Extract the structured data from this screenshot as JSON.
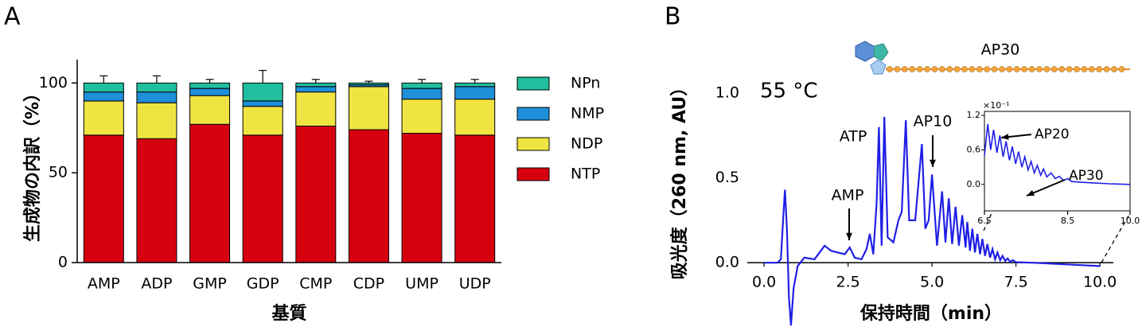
{
  "chart_data": [
    {
      "type": "stacked_bar",
      "panel": "A",
      "y_label": "生成物の内訳（%）",
      "x_label": "基質",
      "categories": [
        "AMP",
        "ADP",
        "GMP",
        "GDP",
        "CMP",
        "CDP",
        "UMP",
        "UDP"
      ],
      "series": [
        {
          "name": "NTP",
          "color": "#d7000f",
          "values": [
            71,
            69,
            77,
            71,
            76,
            74,
            72,
            71
          ],
          "errors": [
            3,
            2,
            1,
            3,
            1,
            1.5,
            0.5,
            1
          ]
        },
        {
          "name": "NDP",
          "color": "#f0e442",
          "values": [
            19,
            20,
            16,
            16,
            19,
            24,
            19,
            20
          ],
          "errors": [
            1,
            1,
            0.5,
            3,
            1,
            0.5,
            1,
            3
          ]
        },
        {
          "name": "NMP",
          "color": "#1e8fd8",
          "values": [
            5,
            6,
            4,
            3,
            3,
            1,
            6,
            7
          ],
          "errors": [
            1,
            1,
            1,
            1,
            1,
            0.5,
            1,
            1
          ]
        },
        {
          "name": "NPn",
          "color": "#1fbf9f",
          "values": [
            5,
            5,
            3,
            10,
            2,
            1,
            3,
            2
          ],
          "errors": [
            4,
            4,
            2,
            7,
            2,
            1,
            2,
            2
          ]
        }
      ],
      "ylim": [
        0,
        113
      ],
      "yticks": [
        0,
        50,
        100
      ]
    },
    {
      "type": "line",
      "panel": "B",
      "y_label": "吸光度（260 nm, AU）",
      "x_label": "保持時間（min）",
      "annotations": [
        "55 °C",
        "ATP",
        "AMP",
        "AP10",
        "AP30"
      ],
      "x": [
        0.0,
        0.4,
        0.5,
        0.58,
        0.62,
        0.68,
        0.74,
        0.8,
        0.88,
        1.0,
        1.2,
        1.5,
        1.8,
        2.0,
        2.2,
        2.4,
        2.55,
        2.7,
        2.9,
        3.05,
        3.15,
        3.25,
        3.35,
        3.42,
        3.5,
        3.58,
        3.68,
        3.85,
        4.0,
        4.1,
        4.22,
        4.32,
        4.5,
        4.7,
        4.8,
        4.9,
        5.0,
        5.15,
        5.3,
        5.4,
        5.5,
        5.6,
        5.7,
        5.8,
        5.9,
        6.0,
        6.05,
        6.13,
        6.2,
        6.28,
        6.35,
        6.43,
        6.5,
        6.58,
        6.65,
        6.73,
        6.8,
        6.88,
        6.95,
        7.03,
        7.1,
        7.18,
        7.25,
        7.33,
        7.4,
        7.5,
        8.0,
        9.0,
        10.0
      ],
      "series": [
        {
          "color": "#1f1fe6",
          "values": [
            0,
            0,
            0.02,
            0.3,
            0.43,
            0.2,
            -0.2,
            -0.37,
            -0.15,
            -0.02,
            0.03,
            0.02,
            0.1,
            0.07,
            0.06,
            0.05,
            0.09,
            0.03,
            0.02,
            0.08,
            0.17,
            0.05,
            0.35,
            0.8,
            0.1,
            0.86,
            0.15,
            0.12,
            0.25,
            0.3,
            0.84,
            0.25,
            0.25,
            0.7,
            0.2,
            0.25,
            0.52,
            0.1,
            0.42,
            0.12,
            0.38,
            0.11,
            0.33,
            0.1,
            0.28,
            0.09,
            0.24,
            0.07,
            0.2,
            0.06,
            0.17,
            0.05,
            0.14,
            0.04,
            0.11,
            0.03,
            0.08,
            0.02,
            0.06,
            0.015,
            0.04,
            0.01,
            0.025,
            0.005,
            0.015,
            0.003,
            0,
            -0.01,
            -0.02
          ]
        }
      ],
      "xlim": [
        -0.5,
        10.4
      ],
      "ylim": [
        -0.37,
        1.08
      ],
      "xticks": [
        {
          "value": 0,
          "label": "0.0"
        },
        2.5,
        {
          "value": 5,
          "label": "5.0"
        },
        7.5,
        {
          "value": 10,
          "label": "10.0"
        }
      ],
      "yticks": [
        {
          "value": 0,
          "label": "0.0"
        },
        0.5,
        {
          "value": 1,
          "label": "1.0"
        }
      ]
    },
    {
      "type": "line",
      "inset": true,
      "y_multiplier": "×10⁻¹",
      "annotations": [
        "AP20",
        "AP30"
      ],
      "x": [
        6.5,
        6.58,
        6.65,
        6.72,
        6.8,
        6.87,
        6.95,
        7.02,
        7.1,
        7.17,
        7.25,
        7.32,
        7.4,
        7.47,
        7.55,
        7.62,
        7.7,
        7.77,
        7.85,
        7.92,
        8.0,
        8.1,
        8.2,
        8.3,
        8.4,
        8.5,
        8.6,
        8.8,
        9.0,
        9.5,
        10.0
      ],
      "series": [
        {
          "color": "#1f1fe6",
          "values": [
            0.5,
            1.05,
            0.6,
            0.95,
            0.55,
            0.85,
            0.48,
            0.75,
            0.42,
            0.66,
            0.36,
            0.57,
            0.3,
            0.48,
            0.25,
            0.4,
            0.2,
            0.33,
            0.16,
            0.27,
            0.13,
            0.2,
            0.1,
            0.14,
            0.07,
            0.1,
            0.05,
            0.04,
            0.03,
            0.01,
            0.0
          ]
        }
      ],
      "xlim": [
        6.5,
        10
      ],
      "ylim": [
        -0.46,
        1.27
      ],
      "xticks": [
        6.5,
        8.5,
        {
          "value": 10,
          "label": "10.0"
        }
      ],
      "yticks": [
        {
          "value": 0,
          "label": "0.0"
        },
        0.6,
        1.2
      ]
    }
  ]
}
